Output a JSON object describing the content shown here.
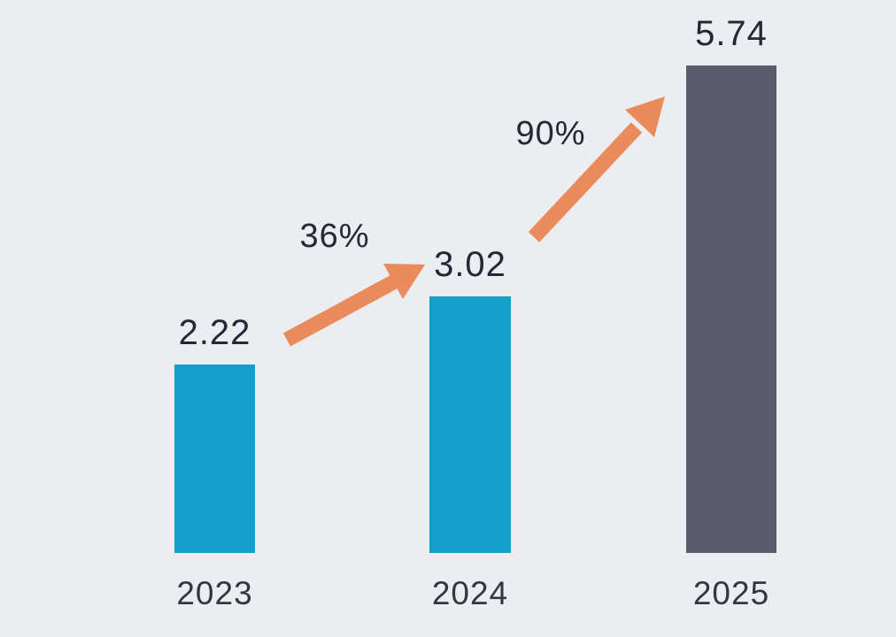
{
  "chart_data": {
    "type": "bar",
    "title": "",
    "xlabel": "",
    "ylabel": "",
    "categories": [
      "2023",
      "2024",
      "2025"
    ],
    "values": [
      2.22,
      3.02,
      5.74
    ],
    "value_labels": [
      "2.22",
      "3.02",
      "5.74"
    ],
    "growth_annotations": [
      {
        "label": "36%",
        "from": "2023",
        "to": "2024"
      },
      {
        "label": "90%",
        "from": "2024",
        "to": "2025"
      }
    ],
    "bar_colors": [
      "#129fca",
      "#129fca",
      "#5b5b6d"
    ],
    "arrow_color": "#e98b5b",
    "text_color": "#232836",
    "background_color": "#ecedf1",
    "ylim": [
      0,
      6
    ],
    "grid": false,
    "legend": "none"
  }
}
